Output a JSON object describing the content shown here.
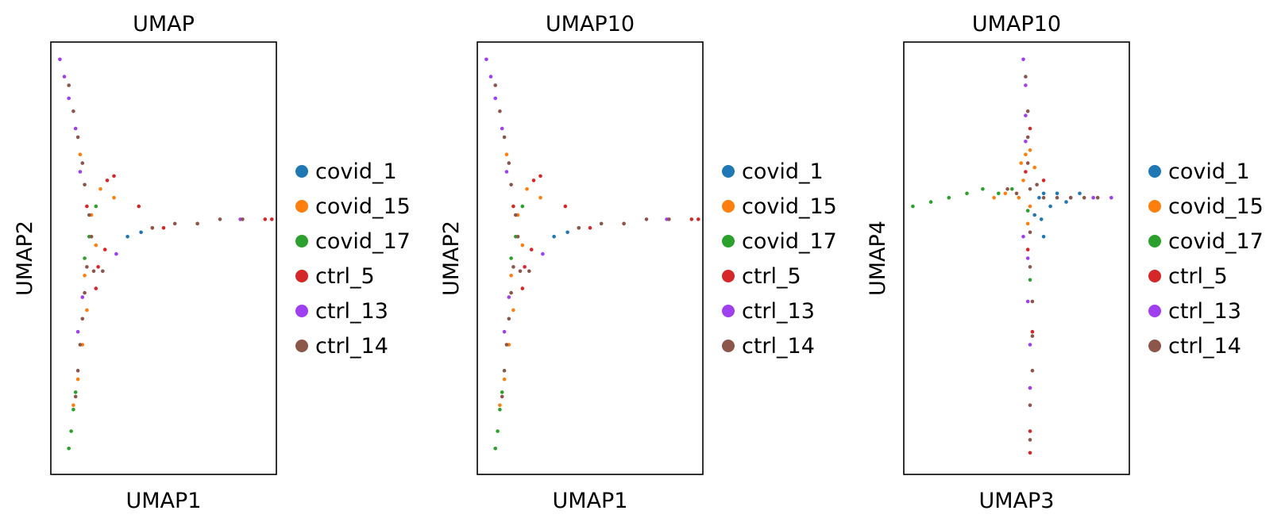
{
  "chart_data": [
    {
      "type": "scatter",
      "title": "UMAP",
      "xlabel": "UMAP1",
      "ylabel": "UMAP2",
      "xlim": [
        0,
        10
      ],
      "ylim": [
        0,
        10
      ],
      "grid": false,
      "legend_position": "right",
      "series": [
        {
          "name": "covid_1",
          "color": "#1f77b4",
          "points": [
            [
              3.4,
              5.5
            ],
            [
              4.0,
              5.6
            ]
          ]
        },
        {
          "name": "covid_15",
          "color": "#ff7f0e",
          "points": [
            [
              1.6,
              3.8
            ],
            [
              1.4,
              3.0
            ],
            [
              1.2,
              2.2
            ],
            [
              1.5,
              4.6
            ],
            [
              2.2,
              6.6
            ],
            [
              2.8,
              6.4
            ],
            [
              1.3,
              7.4
            ],
            [
              2.0,
              5.3
            ],
            [
              4.5,
              5.7
            ],
            [
              6.5,
              5.8
            ],
            [
              1.8,
              6.0
            ],
            [
              1.0,
              1.6
            ]
          ]
        },
        {
          "name": "covid_17",
          "color": "#2ca02c",
          "points": [
            [
              0.8,
              0.6
            ],
            [
              0.9,
              1.0
            ],
            [
              1.0,
              1.5
            ],
            [
              1.1,
              1.9
            ],
            [
              1.7,
              5.5
            ],
            [
              2.0,
              6.2
            ],
            [
              1.5,
              5.0
            ]
          ]
        },
        {
          "name": "ctrl_5",
          "color": "#d62728",
          "points": [
            [
              2.5,
              6.8
            ],
            [
              3.9,
              6.2
            ],
            [
              9.5,
              5.9
            ],
            [
              9.8,
              5.9
            ],
            [
              2.1,
              4.8
            ],
            [
              2.8,
              6.9
            ],
            [
              1.6,
              6.2
            ],
            [
              2.4,
              5.2
            ],
            [
              2.0,
              4.3
            ],
            [
              5.0,
              5.7
            ]
          ]
        },
        {
          "name": "ctrl_13",
          "color": "#9f3fef",
          "points": [
            [
              0.4,
              9.6
            ],
            [
              0.6,
              9.2
            ],
            [
              0.8,
              8.7
            ],
            [
              1.1,
              8.0
            ],
            [
              1.3,
              7.0
            ],
            [
              2.9,
              5.1
            ],
            [
              8.4,
              5.9
            ],
            [
              1.2,
              3.3
            ],
            [
              1.4,
              4.1
            ]
          ]
        },
        {
          "name": "ctrl_14",
          "color": "#8c564b",
          "points": [
            [
              0.8,
              9.0
            ],
            [
              1.0,
              8.4
            ],
            [
              1.2,
              7.8
            ],
            [
              1.4,
              7.2
            ],
            [
              1.5,
              6.7
            ],
            [
              1.7,
              6.0
            ],
            [
              1.8,
              5.5
            ],
            [
              1.6,
              4.8
            ],
            [
              1.5,
              4.2
            ],
            [
              1.4,
              3.6
            ],
            [
              1.3,
              3.0
            ],
            [
              1.2,
              2.4
            ],
            [
              1.1,
              1.8
            ],
            [
              4.5,
              5.7
            ],
            [
              5.5,
              5.8
            ],
            [
              6.5,
              5.8
            ],
            [
              7.5,
              5.9
            ],
            [
              8.5,
              5.9
            ],
            [
              1.9,
              4.7
            ],
            [
              2.3,
              4.7
            ]
          ]
        }
      ]
    },
    {
      "type": "scatter",
      "title": "UMAP10",
      "xlabel": "UMAP1",
      "ylabel": "UMAP2",
      "xlim": [
        0,
        10
      ],
      "ylim": [
        0,
        10
      ],
      "grid": false,
      "legend_position": "right",
      "series": [
        {
          "name": "covid_1",
          "color": "#1f77b4",
          "points": [
            [
              3.4,
              5.5
            ],
            [
              4.0,
              5.6
            ]
          ]
        },
        {
          "name": "covid_15",
          "color": "#ff7f0e",
          "points": [
            [
              1.6,
              3.8
            ],
            [
              1.4,
              3.0
            ],
            [
              1.2,
              2.2
            ],
            [
              1.5,
              4.6
            ],
            [
              2.2,
              6.6
            ],
            [
              2.8,
              6.4
            ],
            [
              1.3,
              7.4
            ],
            [
              2.0,
              5.3
            ],
            [
              4.5,
              5.7
            ],
            [
              6.5,
              5.8
            ],
            [
              1.8,
              6.0
            ],
            [
              1.0,
              1.6
            ]
          ]
        },
        {
          "name": "covid_17",
          "color": "#2ca02c",
          "points": [
            [
              0.8,
              0.6
            ],
            [
              0.9,
              1.0
            ],
            [
              1.0,
              1.5
            ],
            [
              1.1,
              1.9
            ],
            [
              1.7,
              5.5
            ],
            [
              2.0,
              6.2
            ],
            [
              1.5,
              5.0
            ]
          ]
        },
        {
          "name": "ctrl_5",
          "color": "#d62728",
          "points": [
            [
              2.5,
              6.8
            ],
            [
              3.9,
              6.2
            ],
            [
              9.5,
              5.9
            ],
            [
              9.8,
              5.9
            ],
            [
              2.1,
              4.8
            ],
            [
              2.8,
              6.9
            ],
            [
              1.6,
              6.2
            ],
            [
              2.4,
              5.2
            ],
            [
              2.0,
              4.3
            ],
            [
              5.0,
              5.7
            ]
          ]
        },
        {
          "name": "ctrl_13",
          "color": "#9f3fef",
          "points": [
            [
              0.4,
              9.6
            ],
            [
              0.6,
              9.2
            ],
            [
              0.8,
              8.7
            ],
            [
              1.1,
              8.0
            ],
            [
              1.3,
              7.0
            ],
            [
              2.9,
              5.1
            ],
            [
              8.4,
              5.9
            ],
            [
              1.2,
              3.3
            ],
            [
              1.4,
              4.1
            ]
          ]
        },
        {
          "name": "ctrl_14",
          "color": "#8c564b",
          "points": [
            [
              0.8,
              9.0
            ],
            [
              1.0,
              8.4
            ],
            [
              1.2,
              7.8
            ],
            [
              1.4,
              7.2
            ],
            [
              1.5,
              6.7
            ],
            [
              1.7,
              6.0
            ],
            [
              1.8,
              5.5
            ],
            [
              1.6,
              4.8
            ],
            [
              1.5,
              4.2
            ],
            [
              1.4,
              3.6
            ],
            [
              1.3,
              3.0
            ],
            [
              1.2,
              2.4
            ],
            [
              1.1,
              1.8
            ],
            [
              4.5,
              5.7
            ],
            [
              5.5,
              5.8
            ],
            [
              6.5,
              5.8
            ],
            [
              7.5,
              5.9
            ],
            [
              8.5,
              5.9
            ],
            [
              1.9,
              4.7
            ],
            [
              2.3,
              4.7
            ]
          ]
        }
      ]
    },
    {
      "type": "scatter",
      "title": "UMAP10",
      "xlabel": "UMAP3",
      "ylabel": "UMAP4",
      "xlim": [
        0,
        10
      ],
      "ylim": [
        0,
        10
      ],
      "grid": false,
      "legend_position": "right",
      "series": [
        {
          "name": "covid_1",
          "color": "#1f77b4",
          "points": [
            [
              6.2,
              6.5
            ],
            [
              6.8,
              6.5
            ],
            [
              7.4,
              6.4
            ],
            [
              7.8,
              6.5
            ],
            [
              6.5,
              6.2
            ],
            [
              7.2,
              6.3
            ],
            [
              6.0,
              6.4
            ],
            [
              6.1,
              5.9
            ],
            [
              6.2,
              5.5
            ],
            [
              5.8,
              6.0
            ]
          ]
        },
        {
          "name": "covid_15",
          "color": "#ff7f0e",
          "points": [
            [
              5.2,
              7.2
            ],
            [
              5.3,
              6.8
            ],
            [
              5.6,
              7.5
            ],
            [
              5.4,
              7.4
            ],
            [
              5.1,
              6.4
            ],
            [
              5.5,
              5.8
            ],
            [
              4.5,
              6.5
            ],
            [
              4.0,
              6.4
            ],
            [
              5.8,
              7.1
            ],
            [
              5.6,
              6.2
            ]
          ]
        },
        {
          "name": "covid_17",
          "color": "#2ca02c",
          "points": [
            [
              0.4,
              6.2
            ],
            [
              1.2,
              6.3
            ],
            [
              2.0,
              6.4
            ],
            [
              2.8,
              6.5
            ],
            [
              3.5,
              6.6
            ],
            [
              4.2,
              6.5
            ],
            [
              4.8,
              6.6
            ],
            [
              5.5,
              6.1
            ],
            [
              5.6,
              4.5
            ]
          ]
        },
        {
          "name": "ctrl_5",
          "color": "#d62728",
          "points": [
            [
              5.6,
              1.0
            ],
            [
              5.6,
              2.0
            ],
            [
              5.5,
              5.2
            ],
            [
              5.7,
              3.3
            ],
            [
              5.6,
              8.0
            ],
            [
              5.6,
              0.5
            ],
            [
              6.2,
              6.8
            ],
            [
              5.4,
              7.0
            ]
          ]
        },
        {
          "name": "ctrl_13",
          "color": "#9f3fef",
          "points": [
            [
              5.3,
              9.6
            ],
            [
              5.4,
              9.0
            ],
            [
              5.4,
              8.3
            ],
            [
              5.4,
              7.7
            ],
            [
              5.5,
              5.0
            ],
            [
              5.5,
              4.0
            ],
            [
              5.6,
              3.0
            ],
            [
              5.6,
              2.0
            ],
            [
              8.4,
              6.4
            ],
            [
              9.2,
              6.4
            ],
            [
              5.3,
              5.5
            ]
          ]
        },
        {
          "name": "ctrl_14",
          "color": "#8c564b",
          "points": [
            [
              5.4,
              9.2
            ],
            [
              5.5,
              8.4
            ],
            [
              5.5,
              7.8
            ],
            [
              5.5,
              7.2
            ],
            [
              5.6,
              6.6
            ],
            [
              5.6,
              5.6
            ],
            [
              5.6,
              4.8
            ],
            [
              5.7,
              4.0
            ],
            [
              5.7,
              3.2
            ],
            [
              5.7,
              2.4
            ],
            [
              5.6,
              1.6
            ],
            [
              5.6,
              0.8
            ],
            [
              6.2,
              6.4
            ],
            [
              6.8,
              6.4
            ],
            [
              7.4,
              6.4
            ],
            [
              8.0,
              6.4
            ],
            [
              8.6,
              6.4
            ],
            [
              5.0,
              6.5
            ],
            [
              4.6,
              6.6
            ],
            [
              5.9,
              6.7
            ]
          ]
        }
      ]
    }
  ]
}
